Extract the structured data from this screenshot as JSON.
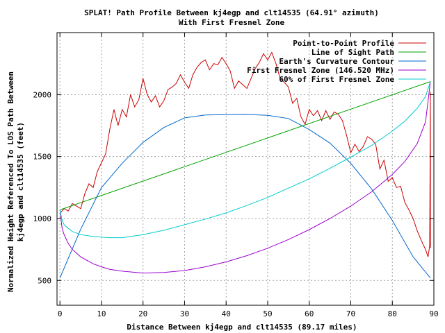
{
  "chart_data": {
    "type": "line",
    "title": "SPLAT! Path Profile Between kj4egp and clt14535 (64.91° azimuth)",
    "subtitle": "With First Fresnel Zone",
    "xlabel": "Distance Between kj4egp and clt14535 (89.17 miles)",
    "ylabel_line1": "Normalized Height Referenced To LOS Path Between",
    "ylabel_line2": "kj4egp and clt14535 (feet)",
    "xlim": [
      -0.7,
      90
    ],
    "ylim": [
      300,
      2500
    ],
    "x_ticks": [
      0,
      10,
      20,
      30,
      40,
      50,
      60,
      70,
      80,
      90
    ],
    "y_ticks": [
      500,
      1000,
      1500,
      2000
    ],
    "x_tick_labels": [
      "0",
      "10",
      "20",
      "30",
      "40",
      "50",
      "60",
      "70",
      "80",
      "90"
    ],
    "y_tick_labels": [
      "500",
      "1000",
      "1500",
      "2000"
    ],
    "grid": true,
    "legend_position": "top-right",
    "series": [
      {
        "name": "Point-to-Point Profile",
        "color": "#cc0000",
        "x": [
          0,
          1,
          2,
          3,
          4,
          5,
          6,
          7,
          8,
          9,
          10,
          11,
          12,
          13,
          14,
          15,
          16,
          17,
          18,
          19,
          20,
          21,
          22,
          23,
          24,
          25,
          26,
          27,
          28,
          29,
          30,
          31,
          32,
          33,
          34,
          35,
          36,
          37,
          38,
          39,
          40,
          41,
          42,
          43,
          44,
          45,
          46,
          47,
          48,
          49,
          50,
          51,
          52,
          53,
          54,
          55,
          56,
          57,
          58,
          59,
          60,
          61,
          62,
          63,
          64,
          65,
          66,
          67,
          68,
          69,
          70,
          71,
          72,
          73,
          74,
          75,
          76,
          77,
          78,
          79,
          80,
          81,
          82,
          83,
          84,
          85,
          86,
          87,
          88,
          88.6,
          89,
          89.17
        ],
        "y": [
          1040,
          1080,
          1060,
          1120,
          1100,
          1080,
          1200,
          1280,
          1250,
          1380,
          1450,
          1520,
          1720,
          1880,
          1750,
          1880,
          1820,
          2000,
          1900,
          1960,
          2130,
          2000,
          1940,
          1990,
          1900,
          1950,
          2040,
          2060,
          2090,
          2160,
          2100,
          2050,
          2160,
          2220,
          2260,
          2280,
          2200,
          2250,
          2240,
          2300,
          2250,
          2190,
          2050,
          2110,
          2080,
          2050,
          2130,
          2210,
          2260,
          2330,
          2280,
          2340,
          2250,
          2130,
          2100,
          2060,
          1930,
          1970,
          1820,
          1760,
          1880,
          1830,
          1870,
          1790,
          1870,
          1800,
          1860,
          1840,
          1790,
          1670,
          1530,
          1600,
          1540,
          1580,
          1660,
          1640,
          1600,
          1400,
          1470,
          1300,
          1330,
          1250,
          1260,
          1130,
          1070,
          1000,
          900,
          820,
          750,
          690,
          780,
          2020
        ]
      },
      {
        "name": "Line of Sight Path",
        "color": "#00a000",
        "x": [
          0,
          89.17
        ],
        "y": [
          1070,
          2105
        ]
      },
      {
        "name": "Earth's Curvature Contour",
        "color": "#0066cc",
        "x": [
          0,
          5,
          10,
          15,
          20,
          25,
          30,
          35,
          40,
          44.58,
          50,
          55,
          60,
          65,
          70,
          75,
          80,
          85,
          89.17
        ],
        "y": [
          520,
          914,
          1249,
          1446,
          1614,
          1734,
          1812,
          1835,
          1838,
          1840,
          1833,
          1807,
          1718,
          1608,
          1445,
          1239,
          985,
          691,
          520
        ]
      },
      {
        "name": "First Fresnel Zone (146.520 MHz)",
        "color": "#9900cc",
        "x": [
          0,
          0.5,
          1,
          2,
          3,
          5,
          8,
          10,
          12,
          15,
          20,
          25,
          30,
          35,
          40,
          45,
          50,
          55,
          60,
          65,
          70,
          75,
          80,
          83,
          86,
          88,
          89.17
        ],
        "y": [
          1070,
          925,
          870,
          800,
          750,
          690,
          635,
          610,
          590,
          575,
          560,
          565,
          580,
          610,
          650,
          700,
          760,
          830,
          910,
          1000,
          1100,
          1215,
          1355,
          1460,
          1605,
          1780,
          2105
        ]
      },
      {
        "name": "60% of First Fresnel Zone",
        "color": "#00cccc",
        "x": [
          0,
          0.5,
          1,
          2,
          3,
          5,
          8,
          10,
          12,
          15,
          20,
          25,
          30,
          35,
          40,
          45,
          50,
          55,
          60,
          65,
          70,
          75,
          80,
          83,
          86,
          88,
          89.17
        ],
        "y": [
          1070,
          990,
          950,
          920,
          895,
          870,
          855,
          850,
          845,
          845,
          870,
          905,
          950,
          995,
          1045,
          1105,
          1170,
          1245,
          1320,
          1405,
          1495,
          1590,
          1705,
          1785,
          1890,
          1985,
          2105
        ]
      },
      {
        "name": "",
        "color": "#cc0000",
        "x": [
          89.17,
          89.17
        ],
        "y": [
          2020,
          760
        ]
      }
    ]
  }
}
